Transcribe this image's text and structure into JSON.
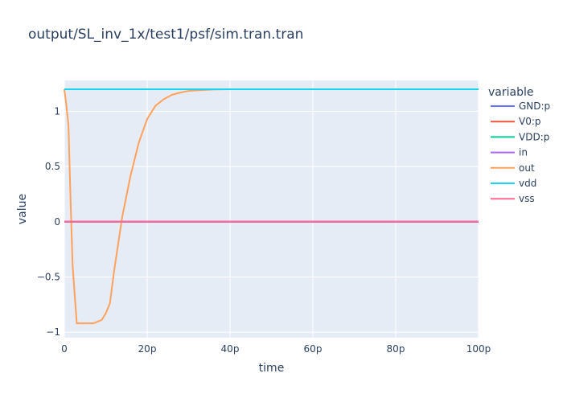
{
  "chart_data": {
    "type": "line",
    "title": "output/SL_inv_1x/test1/psf/sim.tran.tran",
    "xlabel": "time",
    "ylabel": "value",
    "xlim": [
      0,
      100
    ],
    "ylim": [
      -1.05,
      1.28
    ],
    "x_tick_values": [
      0,
      20,
      40,
      60,
      80,
      100
    ],
    "x_tick_labels": [
      "0",
      "20p",
      "40p",
      "60p",
      "80p",
      "100p"
    ],
    "y_tick_values": [
      -1,
      -0.5,
      0,
      0.5,
      1
    ],
    "y_tick_labels": [
      "−1",
      "−0.5",
      "0",
      "0.5",
      "1"
    ],
    "legend_title": "variable",
    "legend_position": "right",
    "grid": true,
    "series": [
      {
        "name": "GND:p",
        "color": "#636efa",
        "x": [
          0,
          100
        ],
        "values": [
          0,
          0
        ]
      },
      {
        "name": "V0:p",
        "color": "#EF553B",
        "x": [
          0,
          100
        ],
        "values": [
          0,
          0
        ]
      },
      {
        "name": "VDD:p",
        "color": "#00cc96",
        "x": [
          0,
          100
        ],
        "values": [
          1.2,
          1.2
        ]
      },
      {
        "name": "in",
        "color": "#ab63fa",
        "x": [
          0,
          100
        ],
        "values": [
          0,
          0
        ]
      },
      {
        "name": "out",
        "color": "#FFA15A",
        "x": [
          0,
          0.5,
          1,
          1.5,
          2,
          3,
          5,
          7,
          9,
          10,
          11,
          12,
          13,
          14,
          16,
          18,
          20,
          22,
          24,
          26,
          28,
          30,
          33,
          36,
          40,
          50,
          60,
          80,
          100
        ],
        "values": [
          1.2,
          1.05,
          0.87,
          0.2,
          -0.4,
          -0.92,
          -0.92,
          -0.92,
          -0.89,
          -0.83,
          -0.74,
          -0.45,
          -0.2,
          0.05,
          0.42,
          0.72,
          0.93,
          1.05,
          1.11,
          1.15,
          1.17,
          1.185,
          1.192,
          1.197,
          1.2,
          1.2,
          1.2,
          1.2,
          1.2
        ]
      },
      {
        "name": "vdd",
        "color": "#19d3f3",
        "x": [
          0,
          100
        ],
        "values": [
          1.2,
          1.2
        ]
      },
      {
        "name": "vss",
        "color": "#FF6692",
        "x": [
          0,
          100
        ],
        "values": [
          0,
          0
        ]
      }
    ]
  }
}
